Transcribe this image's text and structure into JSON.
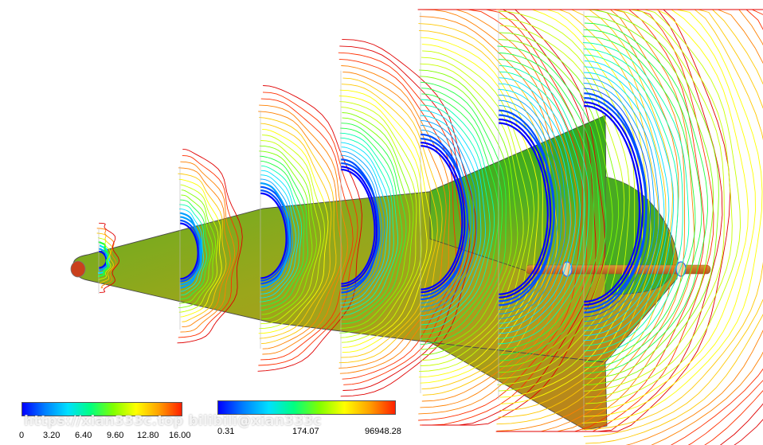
{
  "colorbar_left": {
    "ticks": [
      "0",
      "3.20",
      "6.40",
      "9.60",
      "12.80",
      "16.00"
    ],
    "colors": [
      "#0000ff",
      "#0080ff",
      "#00e0ff",
      "#00ff80",
      "#80ff00",
      "#ffff00",
      "#ffa000",
      "#ff2000"
    ]
  },
  "colorbar_right": {
    "ticks": [
      "0.31",
      "174.07",
      "96948.28"
    ],
    "colors": [
      "#0000ff",
      "#0080ff",
      "#00e0ff",
      "#00ff80",
      "#80ff00",
      "#ffff00",
      "#ffa000",
      "#ff2000"
    ]
  },
  "watermark": "https://xian333c.top bilibili@xian333c",
  "body_colors": {
    "surface_warm": "#a9a61a",
    "surface_green": "#3fae1f",
    "surface_orange": "#c4881e",
    "edge": "#3a3a3a"
  }
}
